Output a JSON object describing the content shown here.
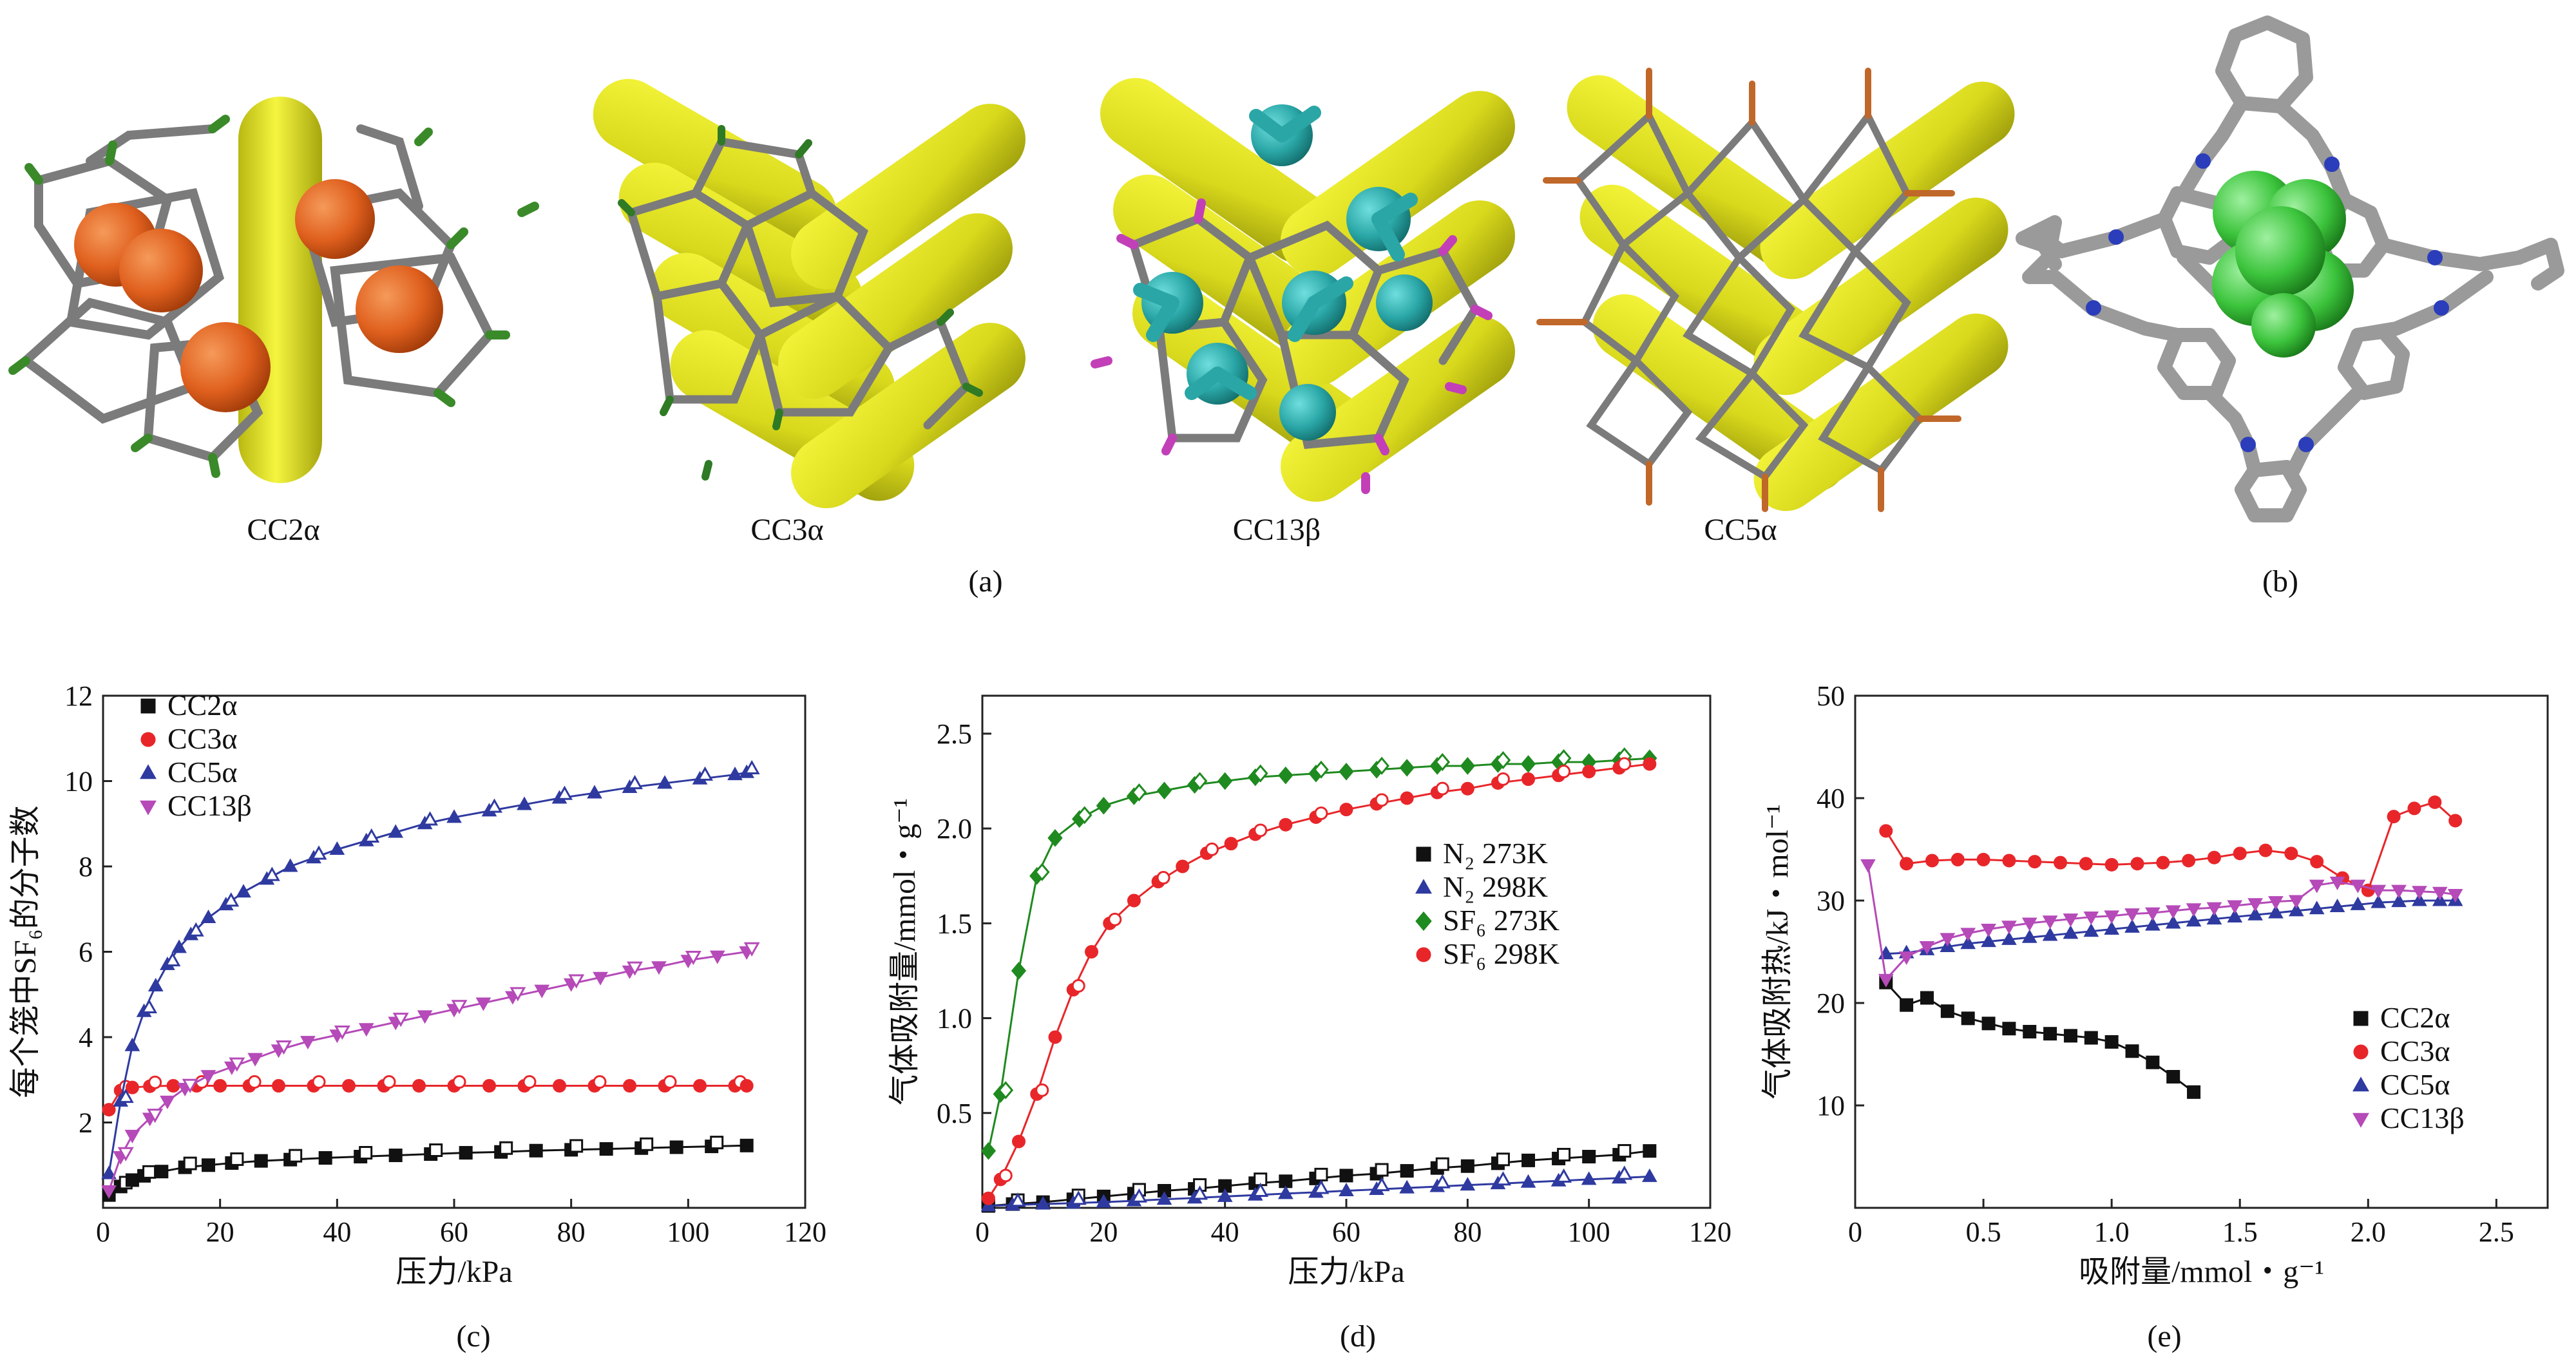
{
  "panel_labels": {
    "a": "(a)",
    "b": "(b)",
    "c": "(c)",
    "d": "(d)",
    "e": "(e)"
  },
  "structures": [
    {
      "name": "CC2α",
      "cage_end_color": "#3a8a2a",
      "guest_color": "#e0601e"
    },
    {
      "name": "CC3α",
      "cage_end_color": "#2f7a25",
      "guest_color": ""
    },
    {
      "name": "CC13β",
      "cage_end_color": "#c23fb8",
      "guest_color": "#2aa6a6"
    },
    {
      "name": "CC5α",
      "cage_end_color": "#c0672a",
      "guest_color": ""
    }
  ],
  "colors": {
    "channel": "#e3e31e",
    "cage": "#808080",
    "nitrogen": "#2b3dbb",
    "sf6": "#3cc43c",
    "black": "#111111",
    "red": "#e8262a",
    "blue": "#2f3aa0",
    "magenta": "#b54ab8",
    "green": "#1f8a1f"
  },
  "chart_data": [
    {
      "id": "c",
      "type": "scatter",
      "ylabel": "每个笼中SF₆的分子数",
      "xlabel": "压力/kPa",
      "xlim": [
        0,
        120
      ],
      "ylim": [
        0,
        12
      ],
      "xticks": [
        "0",
        "20",
        "40",
        "60",
        "80",
        "100",
        "120"
      ],
      "yticks": [
        "2",
        "4",
        "6",
        "8",
        "10",
        "12"
      ],
      "legend": [
        "CC2α",
        "CC3α",
        "CC5α",
        "CC13β"
      ],
      "series": [
        {
          "name": "CC2α",
          "color": "#111111",
          "marker": "square",
          "x": [
            1,
            3,
            5,
            7,
            10,
            14,
            18,
            22,
            27,
            32,
            38,
            44,
            50,
            56,
            62,
            68,
            74,
            80,
            86,
            92,
            98,
            104,
            110
          ],
          "y": [
            0.3,
            0.5,
            0.65,
            0.75,
            0.85,
            0.95,
            1.0,
            1.05,
            1.1,
            1.13,
            1.17,
            1.2,
            1.23,
            1.26,
            1.29,
            1.31,
            1.34,
            1.36,
            1.38,
            1.4,
            1.42,
            1.44,
            1.46
          ]
        },
        {
          "name": "CC3α",
          "color": "#e8262a",
          "marker": "circle",
          "x": [
            1,
            3,
            5,
            8,
            12,
            16,
            20,
            25,
            30,
            36,
            42,
            48,
            54,
            60,
            66,
            72,
            78,
            84,
            90,
            96,
            102,
            108,
            110
          ],
          "y": [
            2.3,
            2.75,
            2.82,
            2.85,
            2.86,
            2.86,
            2.86,
            2.86,
            2.86,
            2.86,
            2.86,
            2.86,
            2.86,
            2.86,
            2.86,
            2.86,
            2.86,
            2.86,
            2.86,
            2.86,
            2.86,
            2.86,
            2.86
          ]
        },
        {
          "name": "CC5α",
          "color": "#2f3aa0",
          "marker": "triangle-up",
          "x": [
            1,
            3,
            5,
            7,
            9,
            11,
            13,
            15,
            18,
            21,
            24,
            28,
            32,
            36,
            40,
            45,
            50,
            55,
            60,
            66,
            72,
            78,
            84,
            90,
            96,
            102,
            108,
            110
          ],
          "y": [
            0.8,
            2.5,
            3.8,
            4.6,
            5.2,
            5.7,
            6.1,
            6.4,
            6.8,
            7.1,
            7.4,
            7.7,
            8.0,
            8.2,
            8.4,
            8.6,
            8.8,
            9.0,
            9.15,
            9.3,
            9.45,
            9.6,
            9.72,
            9.85,
            9.95,
            10.05,
            10.15,
            10.2
          ]
        },
        {
          "name": "CC13β",
          "color": "#b54ab8",
          "marker": "triangle-down",
          "x": [
            1,
            3,
            5,
            8,
            11,
            14,
            18,
            22,
            26,
            30,
            35,
            40,
            45,
            50,
            55,
            60,
            65,
            70,
            75,
            80,
            85,
            90,
            95,
            100,
            105,
            110
          ],
          "y": [
            0.4,
            1.2,
            1.7,
            2.1,
            2.5,
            2.8,
            3.1,
            3.3,
            3.5,
            3.7,
            3.9,
            4.05,
            4.2,
            4.35,
            4.5,
            4.65,
            4.8,
            4.95,
            5.1,
            5.25,
            5.4,
            5.55,
            5.65,
            5.8,
            5.9,
            6.0
          ]
        }
      ]
    },
    {
      "id": "d",
      "type": "scatter",
      "ylabel": "气体吸附量/mmol・g⁻¹",
      "xlabel": "压力/kPa",
      "xlim": [
        0,
        120
      ],
      "ylim": [
        0,
        2.7
      ],
      "xticks": [
        "0",
        "20",
        "40",
        "60",
        "80",
        "100",
        "120"
      ],
      "yticks": [
        "0.5",
        "1.0",
        "1.5",
        "2.0",
        "2.5"
      ],
      "legend": [
        "N₂ 273K",
        "N₂ 298K",
        "SF₆ 273K",
        "SF₆ 298K"
      ],
      "series": [
        {
          "name": "N₂ 273K",
          "color": "#111111",
          "marker": "square",
          "x": [
            1,
            5,
            10,
            15,
            20,
            25,
            30,
            35,
            40,
            45,
            50,
            55,
            60,
            65,
            70,
            75,
            80,
            85,
            90,
            95,
            100,
            105,
            110
          ],
          "y": [
            0.01,
            0.02,
            0.03,
            0.045,
            0.06,
            0.075,
            0.09,
            0.1,
            0.115,
            0.13,
            0.14,
            0.155,
            0.17,
            0.18,
            0.195,
            0.21,
            0.22,
            0.235,
            0.25,
            0.26,
            0.27,
            0.28,
            0.3
          ]
        },
        {
          "name": "N₂ 298K",
          "color": "#2f3aa0",
          "marker": "triangle-up",
          "x": [
            1,
            5,
            10,
            15,
            20,
            25,
            30,
            35,
            40,
            45,
            50,
            55,
            60,
            65,
            70,
            75,
            80,
            85,
            90,
            95,
            100,
            105,
            110
          ],
          "y": [
            0.01,
            0.015,
            0.02,
            0.025,
            0.03,
            0.037,
            0.045,
            0.052,
            0.06,
            0.067,
            0.075,
            0.082,
            0.09,
            0.097,
            0.105,
            0.112,
            0.12,
            0.127,
            0.135,
            0.142,
            0.15,
            0.157,
            0.165
          ]
        },
        {
          "name": "SF₆ 273K",
          "color": "#1f8a1f",
          "marker": "diamond",
          "x": [
            1,
            3,
            6,
            9,
            12,
            16,
            20,
            25,
            30,
            35,
            40,
            45,
            50,
            55,
            60,
            65,
            70,
            75,
            80,
            85,
            90,
            95,
            100,
            105,
            110
          ],
          "y": [
            0.3,
            0.6,
            1.25,
            1.75,
            1.95,
            2.05,
            2.12,
            2.17,
            2.2,
            2.23,
            2.25,
            2.27,
            2.28,
            2.29,
            2.3,
            2.31,
            2.32,
            2.33,
            2.33,
            2.34,
            2.34,
            2.35,
            2.35,
            2.36,
            2.37
          ]
        },
        {
          "name": "SF₆ 298K",
          "color": "#e8262a",
          "marker": "circle",
          "x": [
            1,
            3,
            6,
            9,
            12,
            15,
            18,
            21,
            25,
            29,
            33,
            37,
            41,
            45,
            50,
            55,
            60,
            65,
            70,
            75,
            80,
            85,
            90,
            95,
            100,
            105,
            110
          ],
          "y": [
            0.05,
            0.15,
            0.35,
            0.6,
            0.9,
            1.15,
            1.35,
            1.5,
            1.62,
            1.72,
            1.8,
            1.87,
            1.92,
            1.97,
            2.02,
            2.06,
            2.1,
            2.13,
            2.16,
            2.19,
            2.21,
            2.24,
            2.26,
            2.28,
            2.3,
            2.32,
            2.34
          ]
        }
      ]
    },
    {
      "id": "e",
      "type": "line",
      "ylabel": "气体吸附热/kJ・mol⁻¹",
      "xlabel": "吸附量/mmol・g⁻¹",
      "xlim": [
        0,
        2.7
      ],
      "ylim": [
        0,
        50
      ],
      "xticks": [
        "0",
        "0.5",
        "1.0",
        "1.5",
        "2.0",
        "2.5"
      ],
      "yticks": [
        "10",
        "20",
        "30",
        "40",
        "50"
      ],
      "legend": [
        "CC2α",
        "CC3α",
        "CC5α",
        "CC13β"
      ],
      "series": [
        {
          "name": "CC2α",
          "color": "#111111",
          "marker": "square",
          "x": [
            0.12,
            0.2,
            0.28,
            0.36,
            0.44,
            0.52,
            0.6,
            0.68,
            0.76,
            0.84,
            0.92,
            1.0,
            1.08,
            1.16,
            1.24,
            1.32
          ],
          "y": [
            22.0,
            19.8,
            20.5,
            19.2,
            18.5,
            18.0,
            17.5,
            17.2,
            17.0,
            16.8,
            16.6,
            16.2,
            15.3,
            14.2,
            12.8,
            11.3
          ]
        },
        {
          "name": "CC3α",
          "color": "#e8262a",
          "marker": "circle",
          "x": [
            0.12,
            0.2,
            0.3,
            0.4,
            0.5,
            0.6,
            0.7,
            0.8,
            0.9,
            1.0,
            1.1,
            1.2,
            1.3,
            1.4,
            1.5,
            1.6,
            1.7,
            1.8,
            1.9,
            2.0,
            2.1,
            2.18,
            2.26,
            2.34
          ],
          "y": [
            36.8,
            33.6,
            33.9,
            34.0,
            34.0,
            33.9,
            33.8,
            33.7,
            33.6,
            33.5,
            33.6,
            33.7,
            33.9,
            34.2,
            34.6,
            34.9,
            34.6,
            33.8,
            32.2,
            31.0,
            38.2,
            39.0,
            39.6,
            37.8
          ]
        },
        {
          "name": "CC5α",
          "color": "#2f3aa0",
          "marker": "triangle-up",
          "x": [
            0.12,
            0.2,
            0.28,
            0.36,
            0.44,
            0.52,
            0.6,
            0.68,
            0.76,
            0.84,
            0.92,
            1.0,
            1.08,
            1.16,
            1.24,
            1.32,
            1.4,
            1.48,
            1.56,
            1.64,
            1.72,
            1.8,
            1.88,
            1.96,
            2.04,
            2.12,
            2.2,
            2.28,
            2.34
          ],
          "y": [
            24.8,
            24.9,
            25.2,
            25.5,
            25.8,
            26.0,
            26.2,
            26.4,
            26.6,
            26.8,
            27.0,
            27.2,
            27.4,
            27.6,
            27.8,
            28.0,
            28.2,
            28.4,
            28.6,
            28.8,
            29.0,
            29.2,
            29.4,
            29.6,
            29.8,
            29.9,
            30.0,
            30.0,
            30.0
          ]
        },
        {
          "name": "CC13β",
          "color": "#b54ab8",
          "marker": "triangle-down",
          "x": [
            0.05,
            0.12,
            0.2,
            0.28,
            0.36,
            0.44,
            0.52,
            0.6,
            0.68,
            0.76,
            0.84,
            0.92,
            1.0,
            1.08,
            1.16,
            1.24,
            1.32,
            1.4,
            1.48,
            1.56,
            1.64,
            1.72,
            1.8,
            1.88,
            1.96,
            2.04,
            2.12,
            2.2,
            2.28,
            2.34
          ],
          "y": [
            33.5,
            22.3,
            24.5,
            25.5,
            26.3,
            26.8,
            27.2,
            27.5,
            27.8,
            28.0,
            28.2,
            28.4,
            28.5,
            28.7,
            28.8,
            29.0,
            29.2,
            29.3,
            29.5,
            29.7,
            29.9,
            30.0,
            31.5,
            31.8,
            31.5,
            31.0,
            31.0,
            30.9,
            30.8,
            30.6
          ]
        }
      ]
    }
  ]
}
